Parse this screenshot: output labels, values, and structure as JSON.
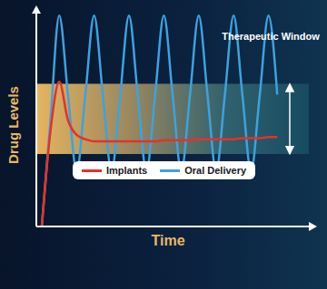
{
  "chart_data": {
    "type": "line",
    "x_label": "Time",
    "y_label": "Drug Levels",
    "x": [
      2,
      5.2,
      8.4,
      11.6,
      14.8,
      18,
      21.2,
      24.4,
      27.6,
      30.8,
      34,
      37.2,
      40.4,
      43.6,
      46.8,
      50,
      53.2,
      56.4,
      59.6,
      62.8,
      66,
      69.2,
      72.4,
      75.6,
      78.8,
      82,
      85.2,
      88.4
    ],
    "xlim": [
      0,
      100
    ],
    "ylim": [
      0,
      100
    ],
    "tick_labels": false,
    "legend": "lower left",
    "band": {
      "label": "Therapeutic Window",
      "y": [
        34,
        67
      ]
    },
    "series": [
      {
        "name": "Implants",
        "color": "#e8302a",
        "values": [
          0,
          45,
          68,
          50,
          43,
          41,
          40,
          40,
          40,
          40,
          40,
          40,
          40,
          40,
          40.5,
          40.5,
          40.5,
          40.5,
          41,
          41,
          41,
          41,
          41,
          41.5,
          41.5,
          41.5,
          42,
          42
        ]
      },
      {
        "name": "Oral Delivery",
        "color": "#3ba3e0",
        "values": [
          0,
          50,
          99,
          62,
          26,
          62,
          99,
          62,
          26,
          62,
          99,
          62,
          26,
          62,
          99,
          62,
          26,
          62,
          99,
          62,
          26,
          62,
          99,
          62,
          26,
          62,
          99,
          62
        ]
      }
    ]
  }
}
